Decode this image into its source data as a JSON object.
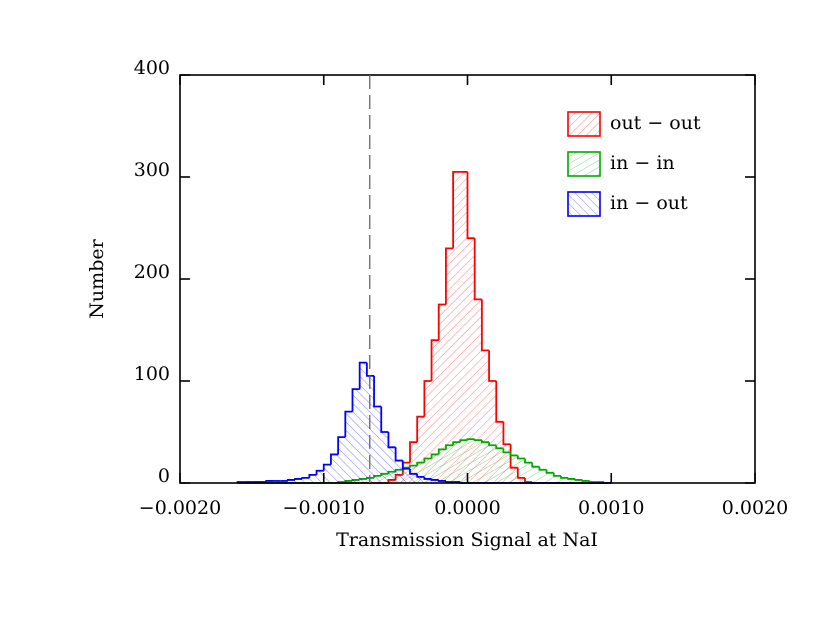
{
  "chart_data": {
    "type": "histogram",
    "x_label": "Transmission Signal at NaI",
    "y_label": "Number",
    "xlim": [
      -0.002,
      0.002
    ],
    "ylim": [
      0,
      400
    ],
    "xticks": [
      {
        "value": -0.002,
        "label": "−0.0020"
      },
      {
        "value": -0.001,
        "label": "−0.0010"
      },
      {
        "value": 0,
        "label": "0.0000"
      },
      {
        "value": 0.001,
        "label": "0.0010"
      },
      {
        "value": 0.002,
        "label": "0.0020"
      }
    ],
    "yticks": [
      0,
      100,
      200,
      300,
      400
    ],
    "legend_position": "upper right",
    "vline": -0.00068,
    "bins": [
      -0.0016,
      -0.00155,
      -0.0015,
      -0.00145,
      -0.0014,
      -0.00135,
      -0.0013,
      -0.00125,
      -0.0012,
      -0.00115,
      -0.0011,
      -0.00105,
      -0.001,
      -0.00095,
      -0.0009,
      -0.00085,
      -0.0008,
      -0.00075,
      -0.0007,
      -0.00065,
      -0.0006,
      -0.00055,
      -0.0005,
      -0.00045,
      -0.0004,
      -0.00035,
      -0.0003,
      -0.00025,
      -0.0002,
      -0.00015,
      -0.0001,
      -5e-05,
      0,
      5e-05,
      0.0001,
      0.00015,
      0.0002,
      0.00025,
      0.0003,
      0.00035,
      0.0004,
      0.00045,
      0.0005,
      0.00055,
      0.0006,
      0.00065,
      0.0007,
      0.00075,
      0.0008,
      0.00085,
      0.0009,
      0.00095,
      0.001
    ],
    "series": [
      {
        "name": "out − out",
        "color": "#ff0000",
        "hatch": 45,
        "values": [
          0,
          0,
          0,
          0,
          0,
          0,
          0,
          0,
          0,
          0,
          0,
          0,
          0,
          0,
          0,
          0,
          0,
          0,
          0,
          0,
          0,
          3,
          8,
          20,
          40,
          65,
          100,
          140,
          175,
          230,
          305,
          305,
          240,
          180,
          130,
          100,
          60,
          38,
          15,
          5,
          1,
          0,
          0,
          0,
          0,
          0,
          0,
          0,
          0,
          0,
          0,
          0
        ]
      },
      {
        "name": "in − in",
        "color": "#00aa00",
        "hatch": 60,
        "values": [
          0,
          0,
          0,
          0,
          0,
          0,
          0,
          0,
          0,
          0,
          0,
          0,
          0,
          0,
          1,
          2,
          3,
          4,
          5,
          7,
          9,
          11,
          13,
          15,
          17,
          20,
          24,
          28,
          33,
          37,
          40,
          42,
          43,
          42,
          40,
          37,
          34,
          30,
          27,
          24,
          20,
          16,
          13,
          10,
          7,
          5,
          4,
          3,
          2,
          1,
          1,
          0
        ]
      },
      {
        "name": "in − out",
        "color": "#0000ff",
        "hatch": -45,
        "values": [
          1,
          1,
          1,
          1,
          2,
          2,
          2,
          3,
          4,
          5,
          8,
          12,
          18,
          28,
          45,
          70,
          92,
          118,
          105,
          75,
          50,
          35,
          22,
          14,
          9,
          6,
          4,
          3,
          2,
          1,
          1,
          0,
          0,
          0,
          0,
          0,
          0,
          0,
          0,
          0,
          0,
          0,
          0,
          0,
          0,
          0,
          0,
          0,
          0,
          0,
          0,
          0
        ]
      }
    ]
  }
}
